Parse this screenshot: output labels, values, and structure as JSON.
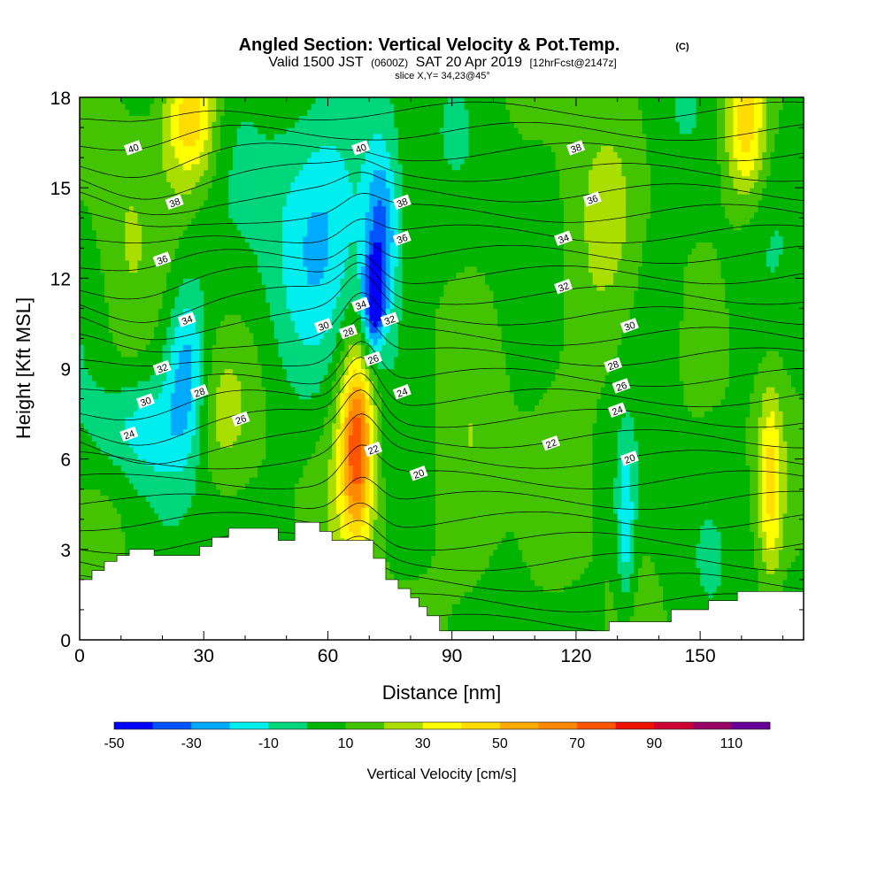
{
  "title": {
    "main": "Angled Section: Vertical Velocity & Pot.Temp.",
    "copyright": "(C)",
    "valid_prefix": "Valid 1500 JST",
    "utc": "(0600Z)",
    "valid_date": "SAT 20 Apr 2019",
    "forecast": "[12hrFcst@2147z]",
    "slice": "slice X,Y= 34,23@45°"
  },
  "chart_data": {
    "type": "heatmap",
    "xlabel": "Distance [nm]",
    "ylabel": "Height [Kft MSL]",
    "xlim": [
      0,
      175
    ],
    "ylim": [
      0,
      18
    ],
    "x_ticks": [
      0,
      30,
      60,
      90,
      120,
      150
    ],
    "x_tick_labels": [
      "0",
      "30",
      "60",
      "90",
      "120",
      "150"
    ],
    "y_ticks": [
      0,
      3,
      6,
      9,
      12,
      15,
      18
    ],
    "y_tick_labels": [
      "0",
      "3",
      "6",
      "9",
      "12",
      "15",
      "18"
    ],
    "colorbar": {
      "title": "Vertical Velocity [cm/s]",
      "bounds": [
        -50,
        -40,
        -30,
        -20,
        -10,
        0,
        10,
        20,
        30,
        40,
        50,
        60,
        70,
        80,
        90,
        100,
        110,
        120
      ],
      "labels": [
        "-50",
        "-30",
        "-10",
        "10",
        "30",
        "50",
        "70",
        "90",
        "110"
      ],
      "colors": [
        "#0000ff",
        "#0055ff",
        "#00aaff",
        "#00eeee",
        "#00d67c",
        "#00b400",
        "#44c400",
        "#aadd00",
        "#ffff00",
        "#ffdd00",
        "#ffaa00",
        "#ff8800",
        "#ff5500",
        "#ee1100",
        "#cc0033",
        "#990066",
        "#660099"
      ]
    },
    "terrain": [
      [
        0,
        2.0
      ],
      [
        3,
        2.0
      ],
      [
        3,
        2.3
      ],
      [
        6,
        2.3
      ],
      [
        6,
        2.6
      ],
      [
        9,
        2.6
      ],
      [
        9,
        2.8
      ],
      [
        12,
        2.8
      ],
      [
        12,
        3.0
      ],
      [
        18,
        3.0
      ],
      [
        18,
        2.8
      ],
      [
        29,
        2.8
      ],
      [
        29,
        3.1
      ],
      [
        32,
        3.1
      ],
      [
        32,
        3.4
      ],
      [
        36,
        3.4
      ],
      [
        36,
        3.7
      ],
      [
        48,
        3.7
      ],
      [
        48,
        3.3
      ],
      [
        52,
        3.3
      ],
      [
        52,
        3.9
      ],
      [
        58,
        3.9
      ],
      [
        58,
        3.6
      ],
      [
        61,
        3.6
      ],
      [
        61,
        3.3
      ],
      [
        71,
        3.3
      ],
      [
        71,
        2.7
      ],
      [
        74,
        2.7
      ],
      [
        74,
        2.0
      ],
      [
        77,
        2.0
      ],
      [
        77,
        1.7
      ],
      [
        80,
        1.7
      ],
      [
        80,
        1.4
      ],
      [
        82,
        1.4
      ],
      [
        82,
        1.1
      ],
      [
        84,
        1.1
      ],
      [
        84,
        0.8
      ],
      [
        87,
        0.8
      ],
      [
        87,
        0.3
      ],
      [
        128,
        0.3
      ],
      [
        128,
        0.6
      ],
      [
        143,
        0.6
      ],
      [
        143,
        1.0
      ],
      [
        152,
        1.0
      ],
      [
        152,
        1.3
      ],
      [
        159,
        1.3
      ],
      [
        159,
        1.6
      ],
      [
        175,
        1.6
      ]
    ],
    "vertical_velocity_features": [
      {
        "x": 27,
        "y": 17.3,
        "sx": 4.5,
        "sy": 1.6,
        "value": 42
      },
      {
        "x": 71,
        "y": 11.2,
        "sx": 1.8,
        "sy": 1.1,
        "value": -48
      },
      {
        "x": 73,
        "y": 13.5,
        "sx": 3.0,
        "sy": 2.2,
        "value": -40
      },
      {
        "x": 59,
        "y": 14.0,
        "sx": 10.0,
        "sy": 3.5,
        "value": -25
      },
      {
        "x": 26,
        "y": 9.0,
        "sx": 3.5,
        "sy": 2.0,
        "value": -32
      },
      {
        "x": 14,
        "y": 7.0,
        "sx": 8.0,
        "sy": 1.2,
        "value": -20
      },
      {
        "x": 67,
        "y": 6.5,
        "sx": 2.5,
        "sy": 2.0,
        "value": 50
      },
      {
        "x": 67,
        "y": 6.5,
        "sx": 4.5,
        "sy": 3.2,
        "value": 25
      },
      {
        "x": 161,
        "y": 17.0,
        "sx": 3.5,
        "sy": 1.8,
        "value": 38
      },
      {
        "x": 167,
        "y": 5.2,
        "sx": 2.0,
        "sy": 2.2,
        "value": 32
      },
      {
        "x": 132,
        "y": 3.8,
        "sx": 1.5,
        "sy": 1.8,
        "value": -28
      },
      {
        "x": 125,
        "y": 12.0,
        "sx": 8.0,
        "sy": 4.0,
        "value": 12
      },
      {
        "x": 140,
        "y": 11.0,
        "sx": 4.0,
        "sy": 2.0,
        "value": -10
      },
      {
        "x": 95,
        "y": 4.0,
        "sx": 6.0,
        "sy": 3.0,
        "value": 14
      },
      {
        "x": 33,
        "y": 7.5,
        "sx": 5.0,
        "sy": 1.5,
        "value": 14
      },
      {
        "x": 10,
        "y": 13.0,
        "sx": 5.0,
        "sy": 4.0,
        "value": 10
      }
    ],
    "potential_temperature_labels": [
      {
        "text": "40",
        "x": 13,
        "y": 16.3
      },
      {
        "text": "40",
        "x": 68,
        "y": 16.3
      },
      {
        "text": "38",
        "x": 23,
        "y": 14.5
      },
      {
        "text": "38",
        "x": 78,
        "y": 14.5
      },
      {
        "text": "38",
        "x": 120,
        "y": 16.3
      },
      {
        "text": "36",
        "x": 20,
        "y": 12.6
      },
      {
        "text": "36",
        "x": 78,
        "y": 13.3
      },
      {
        "text": "36",
        "x": 124,
        "y": 14.6
      },
      {
        "text": "34",
        "x": 26,
        "y": 10.6
      },
      {
        "text": "34",
        "x": 68,
        "y": 11.1
      },
      {
        "text": "34",
        "x": 117,
        "y": 13.3
      },
      {
        "text": "32",
        "x": 20,
        "y": 9.0
      },
      {
        "text": "32",
        "x": 75,
        "y": 10.6
      },
      {
        "text": "32",
        "x": 117,
        "y": 11.7
      },
      {
        "text": "30",
        "x": 16,
        "y": 7.9
      },
      {
        "text": "30",
        "x": 59,
        "y": 10.4
      },
      {
        "text": "30",
        "x": 133,
        "y": 10.4
      },
      {
        "text": "28",
        "x": 29,
        "y": 8.2
      },
      {
        "text": "28",
        "x": 65,
        "y": 10.2
      },
      {
        "text": "28",
        "x": 129,
        "y": 9.1
      },
      {
        "text": "26",
        "x": 39,
        "y": 7.3
      },
      {
        "text": "26",
        "x": 71,
        "y": 9.3
      },
      {
        "text": "26",
        "x": 131,
        "y": 8.4
      },
      {
        "text": "24",
        "x": 12,
        "y": 6.8
      },
      {
        "text": "24",
        "x": 78,
        "y": 8.2
      },
      {
        "text": "24",
        "x": 130,
        "y": 7.6
      },
      {
        "text": "22",
        "x": 71,
        "y": 6.3
      },
      {
        "text": "22",
        "x": 114,
        "y": 6.5
      },
      {
        "text": "20",
        "x": 82,
        "y": 5.5
      },
      {
        "text": "20",
        "x": 133,
        "y": 6.0
      }
    ],
    "potential_temperature_levels": [
      20,
      22,
      24,
      26,
      28,
      30,
      32,
      34,
      36,
      38,
      40
    ]
  }
}
